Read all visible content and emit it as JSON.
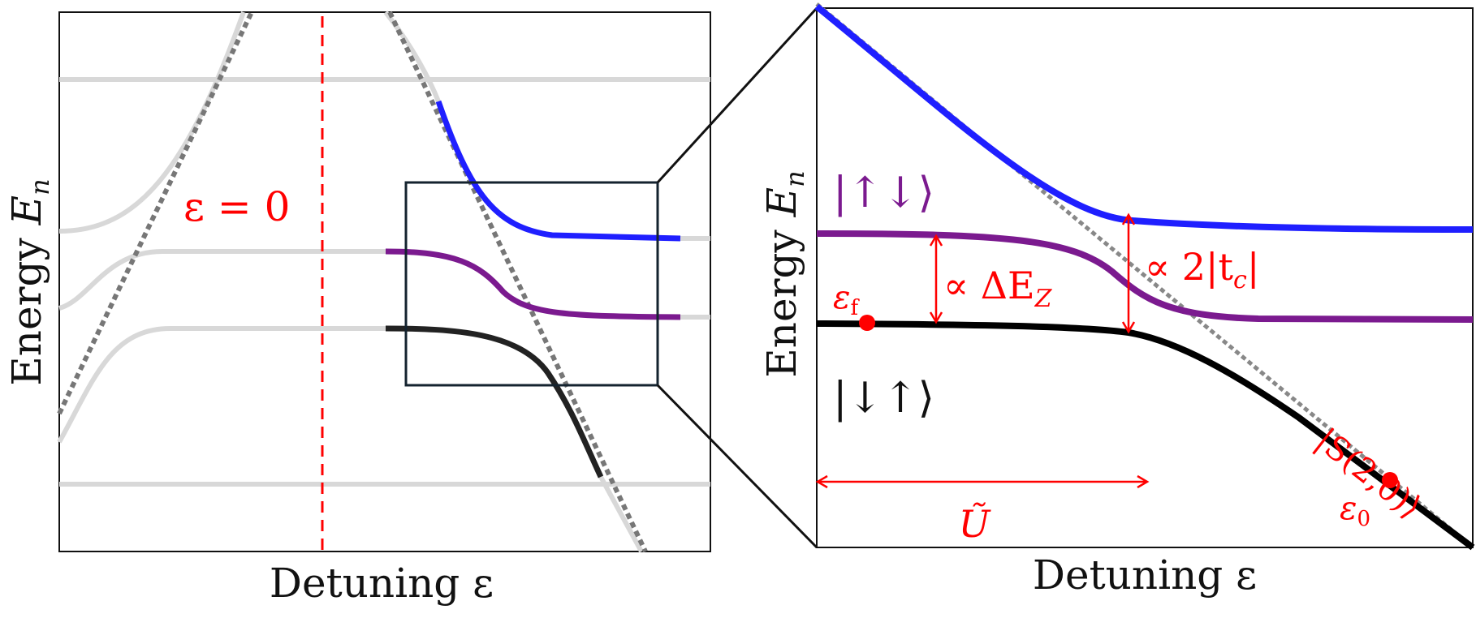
{
  "left_panel": {
    "xlabel": "Detuning  ε",
    "ylabel_prefix": "Energy ",
    "ylabel_symbol": "E",
    "ylabel_subscript": "n",
    "zero_marker_label": "ε = 0"
  },
  "right_panel": {
    "xlabel": "Detuning  ε",
    "ylabel_prefix": "Energy ",
    "ylabel_symbol": "E",
    "ylabel_subscript": "n",
    "state_upper_label": "|↑↓⟩",
    "state_lower_label": "|↓↑⟩",
    "singlet_label": "|S(2,0)⟩",
    "zeeman_gap_label": "∝ ΔE",
    "zeeman_gap_subscript": "Z",
    "tunnel_gap_label": "∝ 2|t",
    "tunnel_gap_subscript": "c",
    "tunnel_gap_suffix": "|",
    "interaction_label": "Ũ",
    "eps_f_symbol": "ε",
    "eps_f_subscript": "f",
    "eps_0_symbol": "ε",
    "eps_0_subscript": "0"
  },
  "colors": {
    "blue_branch": "#1f1fff",
    "purple_branch": "#7b1a8f",
    "black_branch": "#111111",
    "gray_curves": "#d8d8d8",
    "dashed_asymptote": "#777777",
    "annotation_red": "#ff0000",
    "zoom_box": "#14232f"
  }
}
